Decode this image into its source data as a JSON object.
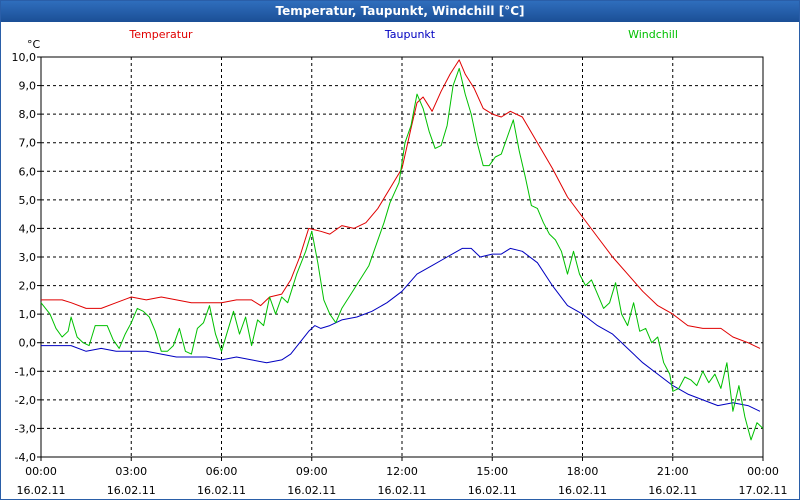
{
  "window": {
    "title": "Temperatur, Taupunkt, Windchill [°C]"
  },
  "chart_data": {
    "type": "line",
    "title": "Temperatur, Taupunkt, Windchill [°C]",
    "yunit": "°C",
    "ylim": [
      -4,
      10
    ],
    "yticks": [
      "10,0",
      "9,0",
      "8,0",
      "7,0",
      "6,0",
      "5,0",
      "4,0",
      "3,0",
      "2,0",
      "1,0",
      "0,0",
      "-1,0",
      "-2,0",
      "-3,0",
      "-4,0"
    ],
    "xlim": [
      0,
      24
    ],
    "xticks": [
      {
        "time": "00:00",
        "date": "16.02.11"
      },
      {
        "time": "03:00",
        "date": "16.02.11"
      },
      {
        "time": "06:00",
        "date": "16.02.11"
      },
      {
        "time": "09:00",
        "date": "16.02.11"
      },
      {
        "time": "12:00",
        "date": "16.02.11"
      },
      {
        "time": "15:00",
        "date": "16.02.11"
      },
      {
        "time": "18:00",
        "date": "16.02.11"
      },
      {
        "time": "21:00",
        "date": "16.02.11"
      },
      {
        "time": "00:00",
        "date": "17.02.11"
      }
    ],
    "grid": true,
    "legend": "top",
    "series": [
      {
        "name": "Temperatur",
        "color": "#e00000",
        "points": [
          [
            0,
            1.5
          ],
          [
            0.7,
            1.5
          ],
          [
            1.0,
            1.4
          ],
          [
            1.5,
            1.2
          ],
          [
            2.0,
            1.2
          ],
          [
            2.5,
            1.4
          ],
          [
            3.0,
            1.6
          ],
          [
            3.5,
            1.5
          ],
          [
            4.0,
            1.6
          ],
          [
            4.5,
            1.5
          ],
          [
            5.0,
            1.4
          ],
          [
            5.5,
            1.4
          ],
          [
            6.0,
            1.4
          ],
          [
            6.5,
            1.5
          ],
          [
            7.0,
            1.5
          ],
          [
            7.3,
            1.3
          ],
          [
            7.6,
            1.6
          ],
          [
            8.0,
            1.7
          ],
          [
            8.3,
            2.2
          ],
          [
            8.6,
            3.0
          ],
          [
            8.9,
            4.0
          ],
          [
            9.3,
            3.9
          ],
          [
            9.6,
            3.8
          ],
          [
            10.0,
            4.1
          ],
          [
            10.4,
            4.0
          ],
          [
            10.8,
            4.2
          ],
          [
            11.2,
            4.7
          ],
          [
            11.6,
            5.4
          ],
          [
            12.0,
            6.1
          ],
          [
            12.3,
            7.5
          ],
          [
            12.5,
            8.4
          ],
          [
            12.7,
            8.6
          ],
          [
            13.0,
            8.1
          ],
          [
            13.3,
            8.8
          ],
          [
            13.6,
            9.4
          ],
          [
            13.9,
            9.9
          ],
          [
            14.1,
            9.4
          ],
          [
            14.4,
            8.9
          ],
          [
            14.7,
            8.2
          ],
          [
            15.0,
            8.0
          ],
          [
            15.3,
            7.9
          ],
          [
            15.6,
            8.1
          ],
          [
            16.0,
            7.9
          ],
          [
            16.5,
            7.0
          ],
          [
            17.0,
            6.1
          ],
          [
            17.5,
            5.1
          ],
          [
            18.0,
            4.4
          ],
          [
            18.5,
            3.7
          ],
          [
            19.0,
            3.0
          ],
          [
            19.5,
            2.4
          ],
          [
            20.0,
            1.8
          ],
          [
            20.5,
            1.3
          ],
          [
            21.0,
            1.0
          ],
          [
            21.5,
            0.6
          ],
          [
            22.0,
            0.5
          ],
          [
            22.6,
            0.5
          ],
          [
            23.0,
            0.2
          ],
          [
            23.5,
            0.0
          ],
          [
            23.9,
            -0.2
          ]
        ]
      },
      {
        "name": "Taupunkt",
        "color": "#0000c0",
        "points": [
          [
            0,
            -0.1
          ],
          [
            1.0,
            -0.1
          ],
          [
            1.5,
            -0.3
          ],
          [
            2.0,
            -0.2
          ],
          [
            2.5,
            -0.3
          ],
          [
            3.0,
            -0.3
          ],
          [
            3.5,
            -0.3
          ],
          [
            4.0,
            -0.4
          ],
          [
            4.5,
            -0.5
          ],
          [
            5.0,
            -0.5
          ],
          [
            5.5,
            -0.5
          ],
          [
            6.0,
            -0.6
          ],
          [
            6.5,
            -0.5
          ],
          [
            7.0,
            -0.6
          ],
          [
            7.5,
            -0.7
          ],
          [
            8.0,
            -0.6
          ],
          [
            8.3,
            -0.4
          ],
          [
            8.6,
            0.0
          ],
          [
            8.9,
            0.4
          ],
          [
            9.1,
            0.6
          ],
          [
            9.3,
            0.5
          ],
          [
            9.6,
            0.6
          ],
          [
            10.0,
            0.8
          ],
          [
            10.5,
            0.9
          ],
          [
            11.0,
            1.1
          ],
          [
            11.5,
            1.4
          ],
          [
            12.0,
            1.8
          ],
          [
            12.5,
            2.4
          ],
          [
            13.0,
            2.7
          ],
          [
            13.5,
            3.0
          ],
          [
            14.0,
            3.3
          ],
          [
            14.3,
            3.3
          ],
          [
            14.6,
            3.0
          ],
          [
            15.0,
            3.1
          ],
          [
            15.3,
            3.1
          ],
          [
            15.6,
            3.3
          ],
          [
            16.0,
            3.2
          ],
          [
            16.5,
            2.8
          ],
          [
            17.0,
            2.0
          ],
          [
            17.5,
            1.3
          ],
          [
            18.0,
            1.0
          ],
          [
            18.5,
            0.6
          ],
          [
            19.0,
            0.3
          ],
          [
            19.5,
            -0.2
          ],
          [
            20.0,
            -0.7
          ],
          [
            20.5,
            -1.1
          ],
          [
            21.0,
            -1.5
          ],
          [
            21.5,
            -1.8
          ],
          [
            22.0,
            -2.0
          ],
          [
            22.5,
            -2.2
          ],
          [
            23.0,
            -2.1
          ],
          [
            23.5,
            -2.2
          ],
          [
            23.9,
            -2.4
          ]
        ]
      },
      {
        "name": "Windchill",
        "color": "#00c000",
        "points": [
          [
            0,
            1.4
          ],
          [
            0.3,
            1.0
          ],
          [
            0.5,
            0.5
          ],
          [
            0.7,
            0.2
          ],
          [
            0.9,
            0.4
          ],
          [
            1.0,
            0.9
          ],
          [
            1.2,
            0.2
          ],
          [
            1.4,
            0.0
          ],
          [
            1.6,
            -0.1
          ],
          [
            1.8,
            0.6
          ],
          [
            2.0,
            0.6
          ],
          [
            2.2,
            0.6
          ],
          [
            2.4,
            0.1
          ],
          [
            2.6,
            -0.2
          ],
          [
            2.8,
            0.3
          ],
          [
            3.0,
            0.7
          ],
          [
            3.2,
            1.2
          ],
          [
            3.4,
            1.1
          ],
          [
            3.6,
            0.9
          ],
          [
            3.8,
            0.4
          ],
          [
            4.0,
            -0.3
          ],
          [
            4.2,
            -0.3
          ],
          [
            4.4,
            -0.1
          ],
          [
            4.6,
            0.5
          ],
          [
            4.8,
            -0.3
          ],
          [
            5.0,
            -0.4
          ],
          [
            5.2,
            0.5
          ],
          [
            5.4,
            0.7
          ],
          [
            5.6,
            1.3
          ],
          [
            5.8,
            0.3
          ],
          [
            6.0,
            -0.3
          ],
          [
            6.2,
            0.4
          ],
          [
            6.4,
            1.1
          ],
          [
            6.6,
            0.3
          ],
          [
            6.8,
            0.9
          ],
          [
            7.0,
            -0.1
          ],
          [
            7.2,
            0.8
          ],
          [
            7.4,
            0.6
          ],
          [
            7.6,
            1.6
          ],
          [
            7.8,
            1.0
          ],
          [
            8.0,
            1.6
          ],
          [
            8.2,
            1.4
          ],
          [
            8.5,
            2.4
          ],
          [
            8.8,
            3.2
          ],
          [
            9.0,
            3.9
          ],
          [
            9.2,
            2.8
          ],
          [
            9.4,
            1.5
          ],
          [
            9.6,
            1.0
          ],
          [
            9.8,
            0.7
          ],
          [
            10.0,
            1.2
          ],
          [
            10.3,
            1.7
          ],
          [
            10.6,
            2.2
          ],
          [
            10.9,
            2.7
          ],
          [
            11.2,
            3.6
          ],
          [
            11.4,
            4.2
          ],
          [
            11.6,
            4.9
          ],
          [
            11.9,
            5.6
          ],
          [
            12.1,
            7.0
          ],
          [
            12.3,
            7.6
          ],
          [
            12.5,
            8.7
          ],
          [
            12.7,
            8.2
          ],
          [
            12.9,
            7.4
          ],
          [
            13.1,
            6.8
          ],
          [
            13.3,
            6.9
          ],
          [
            13.5,
            7.6
          ],
          [
            13.7,
            9.0
          ],
          [
            13.9,
            9.6
          ],
          [
            14.1,
            8.7
          ],
          [
            14.3,
            8.0
          ],
          [
            14.5,
            7.0
          ],
          [
            14.7,
            6.2
          ],
          [
            14.9,
            6.2
          ],
          [
            15.1,
            6.5
          ],
          [
            15.3,
            6.6
          ],
          [
            15.5,
            7.2
          ],
          [
            15.7,
            7.8
          ],
          [
            15.9,
            6.7
          ],
          [
            16.1,
            5.8
          ],
          [
            16.3,
            4.8
          ],
          [
            16.5,
            4.7
          ],
          [
            16.7,
            4.2
          ],
          [
            16.9,
            3.8
          ],
          [
            17.1,
            3.6
          ],
          [
            17.3,
            3.2
          ],
          [
            17.5,
            2.4
          ],
          [
            17.7,
            3.2
          ],
          [
            17.9,
            2.4
          ],
          [
            18.1,
            2.0
          ],
          [
            18.3,
            2.2
          ],
          [
            18.5,
            1.7
          ],
          [
            18.7,
            1.2
          ],
          [
            18.9,
            1.4
          ],
          [
            19.1,
            2.1
          ],
          [
            19.3,
            1.0
          ],
          [
            19.5,
            0.6
          ],
          [
            19.7,
            1.4
          ],
          [
            19.9,
            0.4
          ],
          [
            20.1,
            0.5
          ],
          [
            20.3,
            0.0
          ],
          [
            20.5,
            0.2
          ],
          [
            20.7,
            -0.7
          ],
          [
            20.9,
            -1.1
          ],
          [
            21.0,
            -1.7
          ],
          [
            21.2,
            -1.6
          ],
          [
            21.4,
            -1.2
          ],
          [
            21.6,
            -1.3
          ],
          [
            21.8,
            -1.5
          ],
          [
            22.0,
            -1.0
          ],
          [
            22.2,
            -1.4
          ],
          [
            22.4,
            -1.1
          ],
          [
            22.6,
            -1.6
          ],
          [
            22.8,
            -0.7
          ],
          [
            23.0,
            -2.4
          ],
          [
            23.2,
            -1.5
          ],
          [
            23.4,
            -2.6
          ],
          [
            23.6,
            -3.4
          ],
          [
            23.8,
            -2.8
          ],
          [
            24.0,
            -3.0
          ]
        ]
      }
    ]
  }
}
